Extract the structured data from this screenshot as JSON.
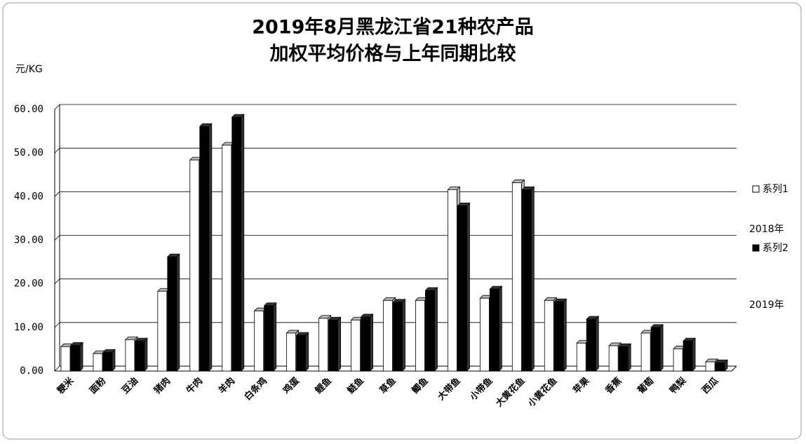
{
  "chart_data": {
    "type": "bar",
    "title": [
      "2019年8月黑龙江省21种农产品",
      "加权平均价格与上年同期比较"
    ],
    "y_axis_label": "元/KG",
    "categories": [
      "粳米",
      "面粉",
      "豆油",
      "猪肉",
      "牛肉",
      "羊肉",
      "白条鸡",
      "鸡蛋",
      "鲤鱼",
      "鲢鱼",
      "草鱼",
      "鲫鱼",
      "大带鱼",
      "小带鱼",
      "大黄花鱼",
      "小黄花鱼",
      "苹果",
      "香蕉",
      "葡萄",
      "鸭梨",
      "西瓜"
    ],
    "series": [
      {
        "name": "系列1",
        "color": "#ffffff",
        "values": [
          5.6,
          4.0,
          7.2,
          18.3,
          48.4,
          51.8,
          13.8,
          8.7,
          12.1,
          11.7,
          16.2,
          16.2,
          41.6,
          16.7,
          43.2,
          16.2,
          6.4,
          5.8,
          8.7,
          5.1,
          2.1
        ]
      },
      {
        "name": "系列2",
        "color": "#000000",
        "values": [
          5.9,
          4.3,
          6.9,
          26.2,
          56.1,
          58.2,
          15.0,
          8.2,
          11.7,
          12.4,
          15.8,
          18.5,
          37.9,
          18.8,
          41.6,
          15.9,
          11.9,
          5.6,
          10.0,
          6.9,
          1.9
        ]
      }
    ],
    "legend_captions": [
      "2018年",
      "2019年"
    ],
    "ylim": [
      0,
      60
    ],
    "yticks": [
      {
        "value": 0,
        "label": "0.00"
      },
      {
        "value": 10,
        "label": "10.00"
      },
      {
        "value": 20,
        "label": "20.00"
      },
      {
        "value": 30,
        "label": "30.00"
      },
      {
        "value": 40,
        "label": "40.00"
      },
      {
        "value": 50,
        "label": "50.00"
      },
      {
        "value": 60,
        "label": "60.00"
      }
    ],
    "grid": true
  }
}
